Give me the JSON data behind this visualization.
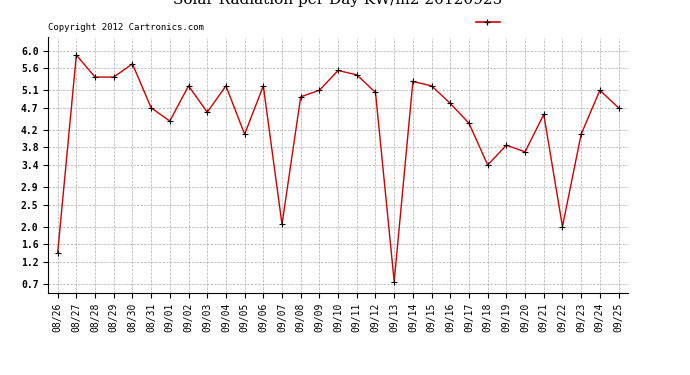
{
  "copyright": "Copyright 2012 Cartronics.com",
  "x_labels": [
    "08/26",
    "08/27",
    "08/28",
    "08/29",
    "08/30",
    "08/31",
    "09/01",
    "09/02",
    "09/03",
    "09/04",
    "09/05",
    "09/06",
    "09/07",
    "09/08",
    "09/09",
    "09/10",
    "09/11",
    "09/12",
    "09/13",
    "09/14",
    "09/15",
    "09/16",
    "09/17",
    "09/18",
    "09/19",
    "09/20",
    "09/21",
    "09/22",
    "09/23",
    "09/24",
    "09/25"
  ],
  "values": [
    1.4,
    5.9,
    5.4,
    5.4,
    5.7,
    4.7,
    4.4,
    5.2,
    4.6,
    5.2,
    4.1,
    5.2,
    2.05,
    4.95,
    5.1,
    5.55,
    5.45,
    5.05,
    0.75,
    5.3,
    5.2,
    4.8,
    4.35,
    3.4,
    3.85,
    3.7,
    4.55,
    2.0,
    4.1,
    5.1,
    4.7
  ],
  "line_color": "#cc0000",
  "marker_color": "#000000",
  "background_color": "#ffffff",
  "grid_color": "#999999",
  "ylim": [
    0.5,
    6.3
  ],
  "yticks": [
    0.7,
    1.2,
    1.6,
    2.0,
    2.5,
    2.9,
    3.4,
    3.8,
    4.2,
    4.7,
    5.1,
    5.6,
    6.0
  ],
  "legend_bg": "#cc0000",
  "legend_text_color": "#ffffff",
  "title_fontsize": 11,
  "tick_fontsize": 7,
  "copyright_fontsize": 6.5
}
